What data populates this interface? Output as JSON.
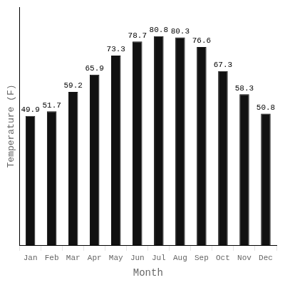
{
  "chart_data": {
    "type": "bar",
    "categories": [
      "Jan",
      "Feb",
      "Mar",
      "Apr",
      "May",
      "Jun",
      "Jul",
      "Aug",
      "Sep",
      "Oct",
      "Nov",
      "Dec"
    ],
    "values": [
      49.9,
      51.7,
      59.2,
      65.9,
      73.3,
      78.7,
      80.8,
      80.3,
      76.6,
      67.3,
      58.3,
      50.8
    ],
    "color": "#111111",
    "xlabel": "Month",
    "ylabel": "Temperature (F)",
    "ylim": [
      0,
      92
    ],
    "grid": false,
    "data_labels": true,
    "tick_labels": "x"
  }
}
